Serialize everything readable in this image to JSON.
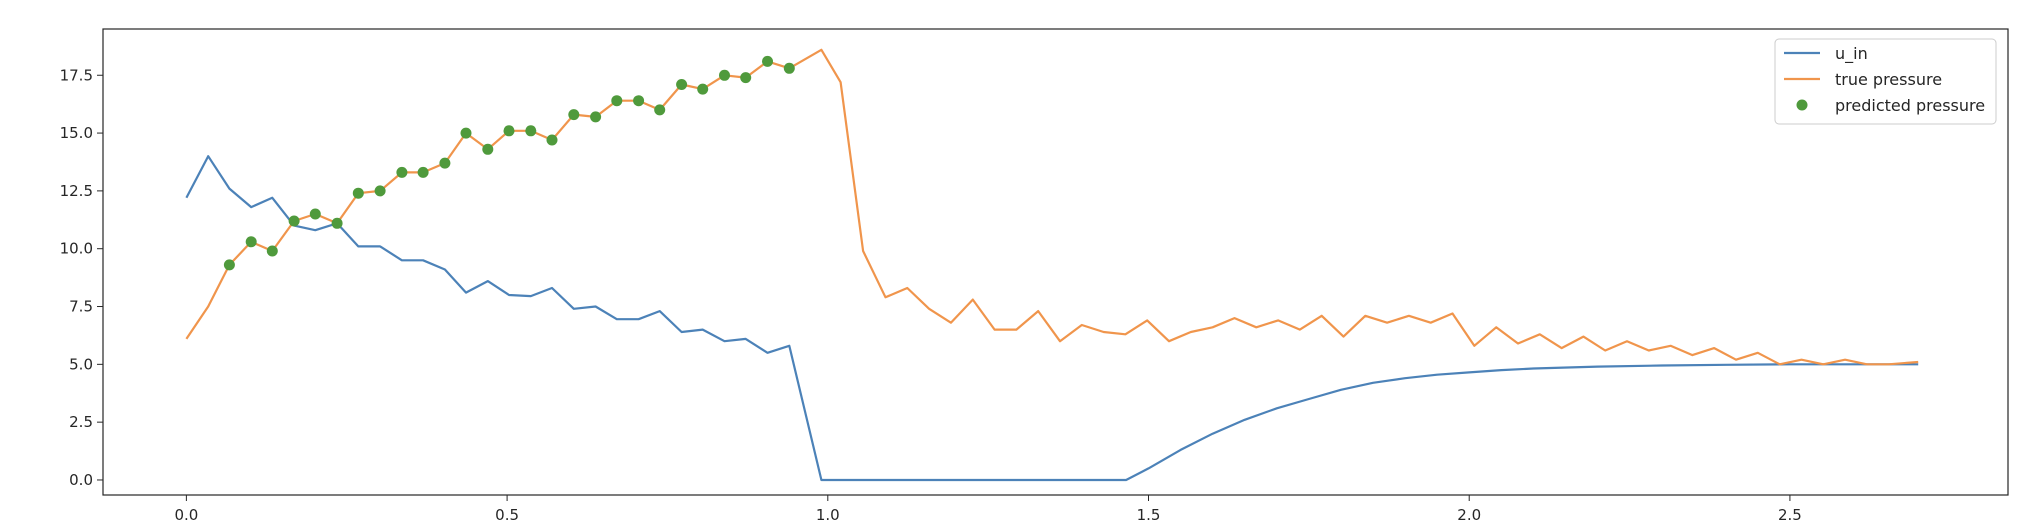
{
  "chart_data": {
    "type": "line",
    "title": "",
    "xlabel": "",
    "ylabel": "",
    "xlim": [
      -0.13,
      2.84
    ],
    "ylim": [
      -0.65,
      19.5
    ],
    "grid": false,
    "legend_position": "top-right",
    "x_ticks": [
      0.0,
      0.5,
      1.0,
      1.5,
      2.0,
      2.5
    ],
    "x_tick_labels": [
      "0.0",
      "0.5",
      "1.0",
      "1.5",
      "2.0",
      "2.5"
    ],
    "y_ticks": [
      0.0,
      2.5,
      5.0,
      7.5,
      10.0,
      12.5,
      15.0,
      17.5
    ],
    "y_tick_labels": [
      "0.0",
      "2.5",
      "5.0",
      "7.5",
      "10.0",
      "12.5",
      "15.0",
      "17.5"
    ],
    "series": [
      {
        "name": "u_in",
        "kind": "line",
        "color": "#4c82b8",
        "x": [
          0.0,
          0.034,
          0.067,
          0.101,
          0.134,
          0.168,
          0.201,
          0.235,
          0.268,
          0.302,
          0.336,
          0.369,
          0.403,
          0.436,
          0.47,
          0.503,
          0.537,
          0.57,
          0.604,
          0.638,
          0.671,
          0.705,
          0.738,
          0.772,
          0.805,
          0.839,
          0.872,
          0.906,
          0.94,
          0.99,
          1.05,
          1.2,
          1.4,
          1.465,
          1.5,
          1.55,
          1.6,
          1.65,
          1.7,
          1.75,
          1.8,
          1.85,
          1.9,
          1.95,
          2.0,
          2.05,
          2.1,
          2.2,
          2.3,
          2.4,
          2.5,
          2.6,
          2.7
        ],
        "y": [
          12.2,
          14.0,
          12.6,
          11.8,
          12.2,
          11.0,
          10.8,
          11.1,
          10.1,
          10.1,
          9.5,
          9.5,
          9.1,
          8.1,
          8.6,
          8.0,
          7.95,
          8.3,
          7.4,
          7.5,
          6.95,
          6.95,
          7.3,
          6.4,
          6.5,
          6.0,
          6.1,
          5.5,
          5.8,
          0.0,
          0.0,
          0.0,
          0.0,
          0.0,
          0.5,
          1.3,
          2.0,
          2.6,
          3.1,
          3.5,
          3.9,
          4.2,
          4.4,
          4.55,
          4.65,
          4.75,
          4.82,
          4.9,
          4.95,
          4.98,
          5.0,
          5.0,
          5.0
        ]
      },
      {
        "name": "true pressure",
        "kind": "line",
        "color": "#f0954c",
        "x": [
          0.0,
          0.034,
          0.067,
          0.101,
          0.134,
          0.168,
          0.201,
          0.235,
          0.268,
          0.302,
          0.336,
          0.369,
          0.403,
          0.436,
          0.47,
          0.503,
          0.537,
          0.57,
          0.604,
          0.638,
          0.671,
          0.705,
          0.738,
          0.772,
          0.805,
          0.839,
          0.872,
          0.906,
          0.94,
          0.99,
          1.02,
          1.055,
          1.09,
          1.124,
          1.158,
          1.192,
          1.226,
          1.26,
          1.294,
          1.328,
          1.362,
          1.396,
          1.43,
          1.464,
          1.498,
          1.532,
          1.566,
          1.6,
          1.634,
          1.668,
          1.702,
          1.736,
          1.77,
          1.804,
          1.838,
          1.872,
          1.906,
          1.94,
          1.974,
          2.008,
          2.042,
          2.076,
          2.11,
          2.144,
          2.178,
          2.212,
          2.246,
          2.28,
          2.314,
          2.348,
          2.382,
          2.416,
          2.45,
          2.484,
          2.518,
          2.552,
          2.586,
          2.62,
          2.654,
          2.7
        ],
        "y": [
          6.1,
          7.5,
          9.3,
          10.3,
          9.9,
          11.2,
          11.5,
          11.1,
          12.4,
          12.5,
          13.3,
          13.3,
          13.7,
          15.0,
          14.3,
          15.1,
          15.1,
          14.7,
          15.8,
          15.7,
          16.4,
          16.4,
          16.0,
          17.1,
          16.9,
          17.5,
          17.4,
          18.1,
          17.8,
          18.6,
          17.2,
          9.9,
          7.9,
          8.3,
          7.4,
          6.8,
          7.8,
          6.5,
          6.5,
          7.3,
          6.0,
          6.7,
          6.4,
          6.3,
          6.9,
          6.0,
          6.4,
          6.6,
          7.0,
          6.6,
          6.9,
          6.5,
          7.1,
          6.2,
          7.1,
          6.8,
          7.1,
          6.8,
          7.2,
          5.8,
          6.6,
          5.9,
          6.3,
          5.7,
          6.2,
          5.6,
          6.0,
          5.6,
          5.8,
          5.4,
          5.7,
          5.2,
          5.5,
          5.0,
          5.2,
          5.0,
          5.2,
          5.0,
          5.0,
          5.1
        ]
      },
      {
        "name": "predicted pressure",
        "kind": "scatter",
        "color": "#4f9a3c",
        "x": [
          0.067,
          0.101,
          0.134,
          0.168,
          0.201,
          0.235,
          0.268,
          0.302,
          0.336,
          0.369,
          0.403,
          0.436,
          0.47,
          0.503,
          0.537,
          0.57,
          0.604,
          0.638,
          0.671,
          0.705,
          0.738,
          0.772,
          0.805,
          0.839,
          0.872,
          0.906,
          0.94
        ],
        "y": [
          9.3,
          10.3,
          9.9,
          11.2,
          11.5,
          11.1,
          12.4,
          12.5,
          13.3,
          13.3,
          13.7,
          15.0,
          14.3,
          15.1,
          15.1,
          14.7,
          15.8,
          15.7,
          16.4,
          16.4,
          16.0,
          17.1,
          16.9,
          17.5,
          17.4,
          18.1,
          17.8
        ]
      }
    ]
  }
}
